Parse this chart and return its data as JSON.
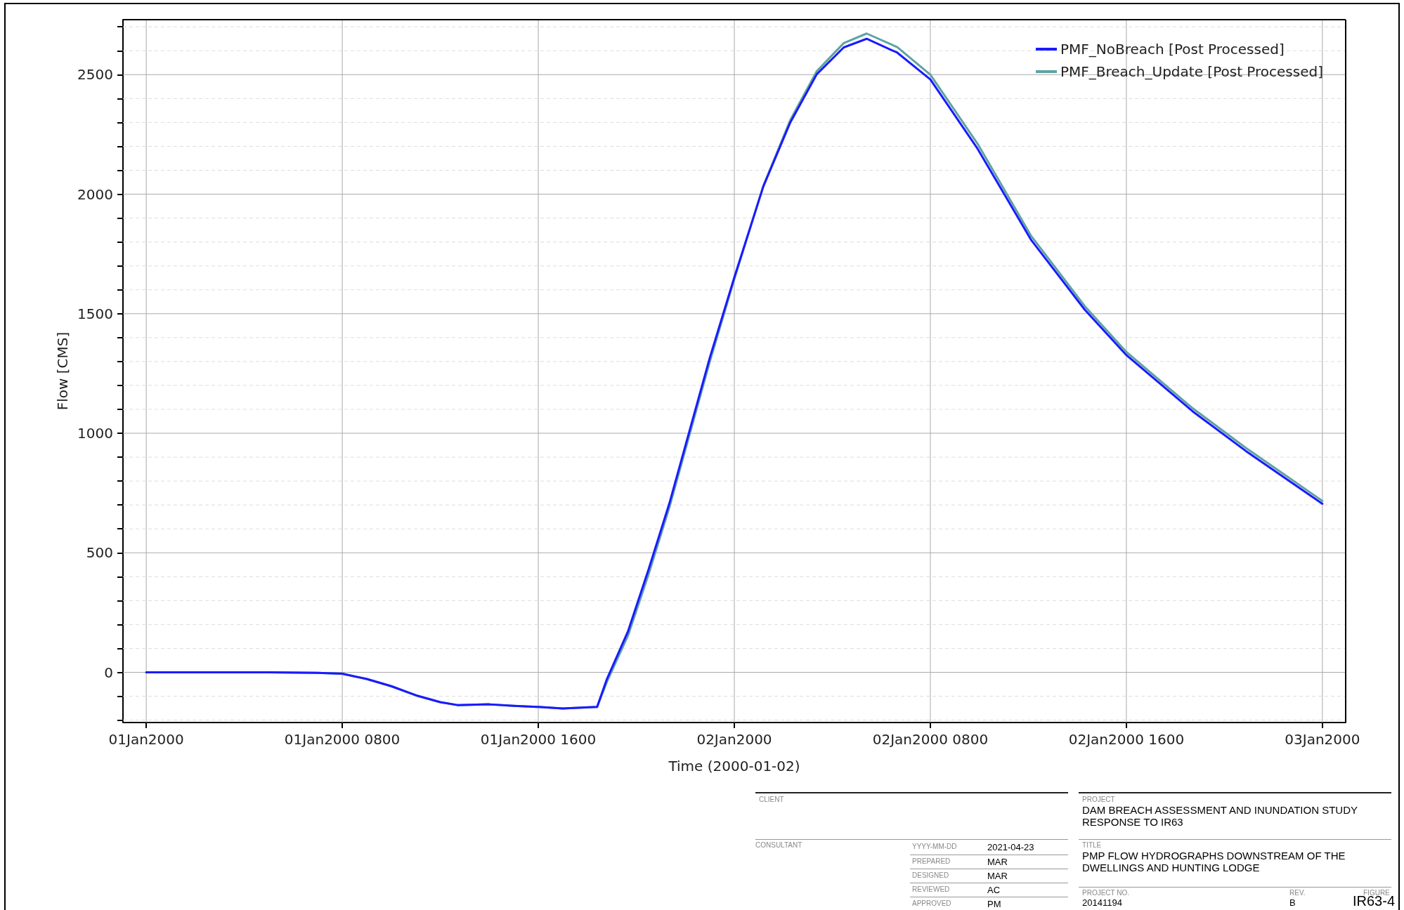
{
  "chart_data": {
    "type": "line",
    "xlabel": "Time (2000-01-02)",
    "ylabel": "Flow [CMS]",
    "x": [
      "2000-01-01T00:00",
      "2000-01-01T05:00",
      "2000-01-01T07:00",
      "2000-01-01T08:00",
      "2000-01-01T09:00",
      "2000-01-01T10:00",
      "2000-01-01T11:00",
      "2000-01-01T12:00",
      "2000-01-01T12:42",
      "2000-01-01T14:00",
      "2000-01-01T15:00",
      "2000-01-01T16:00",
      "2000-01-01T17:00",
      "2000-01-01T18:24",
      "2000-01-01T18:48",
      "2000-01-01T19:40",
      "2000-01-01T20:30",
      "2000-01-01T21:21",
      "2000-01-01T23:00",
      "2000-01-02T00:00",
      "2000-01-02T01:11",
      "2000-01-02T02:17",
      "2000-01-02T03:22",
      "2000-01-02T04:28",
      "2000-01-02T05:24",
      "2000-01-02T06:39",
      "2000-01-02T08:00",
      "2000-01-02T09:56",
      "2000-01-02T12:07",
      "2000-01-02T14:18",
      "2000-01-02T16:00",
      "2000-01-02T18:42",
      "2000-01-02T20:54",
      "2000-01-03T00:00"
    ],
    "series": [
      {
        "name": "PMF_NoBreach [Post Processed]",
        "color": "#1a1aff",
        "values": [
          0,
          0,
          -2,
          -6,
          -28,
          -58,
          -96,
          -125,
          -137,
          -134,
          -140,
          -145,
          -151,
          -145,
          -28,
          173,
          430,
          707,
          1316,
          1652,
          2032,
          2300,
          2502,
          2614,
          2650,
          2592,
          2480,
          2189,
          1808,
          1517,
          1327,
          1092,
          924,
          705
        ]
      },
      {
        "name": "PMF_Breach_Update [Post Processed]",
        "color": "#5fa3a3",
        "values": [
          0,
          0,
          -2,
          -6,
          -28,
          -58,
          -96,
          -125,
          -137,
          -134,
          -140,
          -145,
          -151,
          -145,
          -40,
          155,
          410,
          690,
          1300,
          1645,
          2035,
          2310,
          2515,
          2632,
          2672,
          2615,
          2500,
          2210,
          1825,
          1532,
          1340,
          1105,
          937,
          717
        ]
      }
    ],
    "xlim": [
      "1999-12-31T23:03",
      "2000-01-03T00:57"
    ],
    "xticks": [
      {
        "value": "2000-01-01T00:00",
        "label": "01Jan2000"
      },
      {
        "value": "2000-01-01T08:00",
        "label": "01Jan2000 0800"
      },
      {
        "value": "2000-01-01T16:00",
        "label": "01Jan2000 1600"
      },
      {
        "value": "2000-01-02T00:00",
        "label": "02Jan2000"
      },
      {
        "value": "2000-01-02T08:00",
        "label": "02Jan2000 0800"
      },
      {
        "value": "2000-01-02T16:00",
        "label": "02Jan2000 1600"
      },
      {
        "value": "2000-01-03T00:00",
        "label": "03Jan2000"
      }
    ],
    "ylim": [
      -210,
      2730
    ],
    "yticks": [
      {
        "value": -200,
        "label": null
      },
      {
        "value": -100,
        "label": null
      },
      0,
      {
        "value": 100,
        "label": null
      },
      {
        "value": 200,
        "label": null
      },
      {
        "value": 300,
        "label": null
      },
      {
        "value": 400,
        "label": null
      },
      500,
      {
        "value": 600,
        "label": null
      },
      {
        "value": 700,
        "label": null
      },
      {
        "value": 800,
        "label": null
      },
      {
        "value": 900,
        "label": null
      },
      1000,
      {
        "value": 1100,
        "label": null
      },
      {
        "value": 1200,
        "label": null
      },
      {
        "value": 1300,
        "label": null
      },
      {
        "value": 1400,
        "label": null
      },
      1500,
      {
        "value": 1600,
        "label": null
      },
      {
        "value": 1700,
        "label": null
      },
      {
        "value": 1800,
        "label": null
      },
      {
        "value": 1900,
        "label": null
      },
      2000,
      {
        "value": 2100,
        "label": null
      },
      {
        "value": 2200,
        "label": null
      },
      {
        "value": 2300,
        "label": null
      },
      {
        "value": 2400,
        "label": null
      },
      2500,
      {
        "value": 2600,
        "label": null
      },
      {
        "value": 2700,
        "label": null
      }
    ],
    "grid": true,
    "legend": "top right",
    "marker": "none",
    "line_style": "solid",
    "annotations": [
      "CLIENT",
      "PROJECT",
      "DAM BREACH ASSESSMENT AND INUNDATION STUDY RESPONSE TO IR63",
      "CONSULTANT",
      "YYYY-MM-DD",
      "2021-04-23",
      "PREPARED",
      "MAR",
      "DESIGNED",
      "MAR",
      "REVIEWED",
      "AC",
      "APPROVED",
      "PM",
      "TITLE",
      "PMP FLOW HYDROGRAPHS DOWNSTREAM OF THE DWELLINGS AND HUNTING LODGE",
      "PROJECT NO.",
      "20141194",
      "REV.",
      "B",
      "FIGURE",
      "IR63-4"
    ]
  }
}
